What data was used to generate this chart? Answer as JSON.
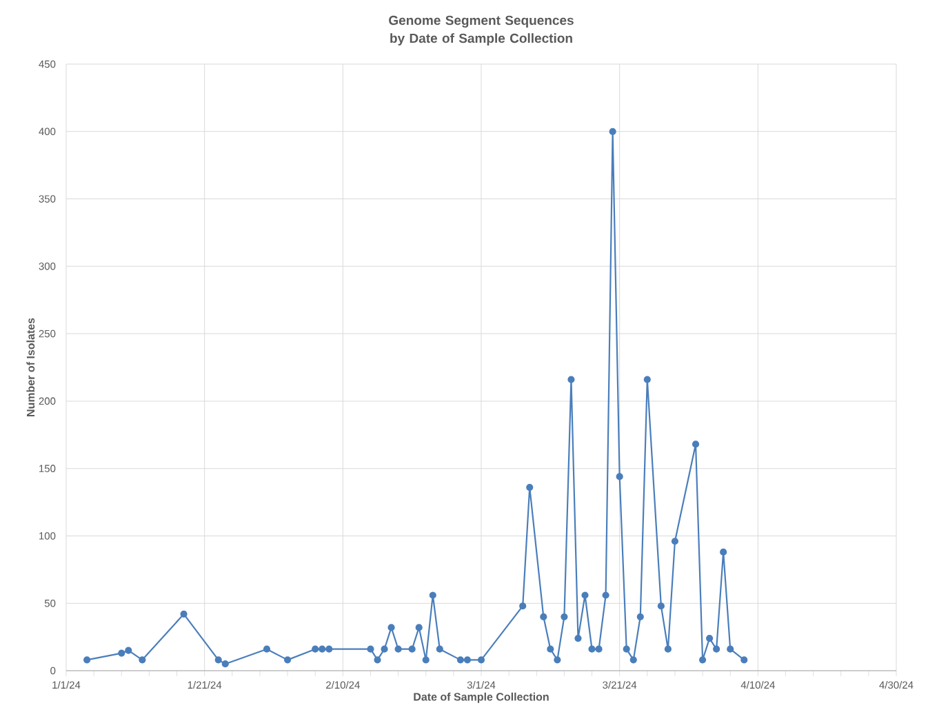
{
  "chart_data": {
    "type": "line",
    "title": "Genome Segment Sequences by Date of Sample Collection",
    "xlabel": "Date of Sample Collection",
    "ylabel": "Number of Isolates",
    "color": "#4a7ebb",
    "marker": "circle",
    "grid": true,
    "x": [
      "2024-01-04",
      "2024-01-09",
      "2024-01-10",
      "2024-01-12",
      "2024-01-18",
      "2024-01-23",
      "2024-01-24",
      "2024-01-30",
      "2024-02-02",
      "2024-02-06",
      "2024-02-07",
      "2024-02-08",
      "2024-02-14",
      "2024-02-15",
      "2024-02-16",
      "2024-02-17",
      "2024-02-18",
      "2024-02-20",
      "2024-02-21",
      "2024-02-22",
      "2024-02-23",
      "2024-02-24",
      "2024-02-27",
      "2024-02-28",
      "2024-03-01",
      "2024-03-07",
      "2024-03-08",
      "2024-03-10",
      "2024-03-11",
      "2024-03-12",
      "2024-03-13",
      "2024-03-14",
      "2024-03-15",
      "2024-03-16",
      "2024-03-17",
      "2024-03-18",
      "2024-03-19",
      "2024-03-20",
      "2024-03-21",
      "2024-03-22",
      "2024-03-23",
      "2024-03-24",
      "2024-03-25",
      "2024-03-27",
      "2024-03-28",
      "2024-03-29",
      "2024-04-01",
      "2024-04-02",
      "2024-04-03",
      "2024-04-04",
      "2024-04-05",
      "2024-04-06",
      "2024-04-08"
    ],
    "values": [
      8,
      13,
      15,
      8,
      42,
      8,
      5,
      16,
      8,
      16,
      16,
      16,
      16,
      8,
      16,
      32,
      16,
      16,
      32,
      8,
      56,
      16,
      8,
      8,
      8,
      48,
      136,
      40,
      16,
      8,
      40,
      216,
      24,
      56,
      16,
      16,
      56,
      400,
      144,
      16,
      8,
      40,
      216,
      48,
      16,
      96,
      168,
      8,
      24,
      16,
      88,
      16,
      8
    ],
    "xlim": [
      "2024-01-01",
      "2024-04-30"
    ],
    "xticks": [
      {
        "value": "2024-01-01",
        "label": "1/1/24"
      },
      {
        "value": "2024-01-21",
        "label": "1/21/24"
      },
      {
        "value": "2024-02-10",
        "label": "2/10/24"
      },
      {
        "value": "2024-03-01",
        "label": "3/1/24"
      },
      {
        "value": "2024-03-21",
        "label": "3/21/24"
      },
      {
        "value": "2024-04-10",
        "label": "4/10/24"
      },
      {
        "value": "2024-04-30",
        "label": "4/30/24"
      }
    ],
    "ylim": [
      0,
      450
    ],
    "yticks": [
      0,
      50,
      100,
      150,
      200,
      250,
      300,
      350,
      400,
      450
    ]
  }
}
